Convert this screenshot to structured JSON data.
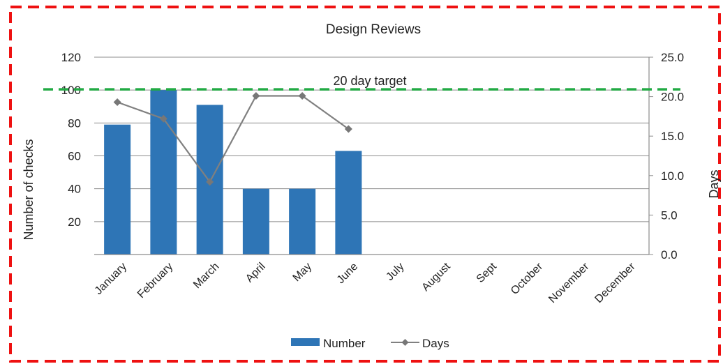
{
  "chart_data": {
    "type": "bar",
    "title": "Design Reviews",
    "categories": [
      "January",
      "February",
      "March",
      "April",
      "May",
      "June",
      "July",
      "August",
      "Sept",
      "October",
      "November",
      "December"
    ],
    "series": [
      {
        "name": "Number",
        "type": "bar",
        "axis": "left",
        "values": [
          79,
          100,
          91,
          40,
          40,
          63,
          null,
          null,
          null,
          null,
          null,
          null
        ]
      },
      {
        "name": "Days",
        "type": "line",
        "axis": "right",
        "values": [
          19.3,
          17.2,
          9.2,
          20.1,
          20.1,
          15.9,
          null,
          null,
          null,
          null,
          null,
          null
        ]
      }
    ],
    "ylabel": "Number of checks",
    "y2label": "Days",
    "ylim": [
      0,
      120
    ],
    "y2lim": [
      0,
      25
    ],
    "yticks": [
      "20",
      "40",
      "60",
      "80",
      "100",
      "120"
    ],
    "y2ticks": [
      "0.0",
      "5.0",
      "10.0",
      "15.0",
      "20.0",
      "25.0"
    ],
    "target": {
      "label": "20 day target",
      "value": 100
    },
    "grid": true,
    "legend": "bottom",
    "colors": {
      "bar": "#2e75b6",
      "line": "#808080",
      "target": "#22aa44",
      "border": "#ee1111"
    }
  }
}
